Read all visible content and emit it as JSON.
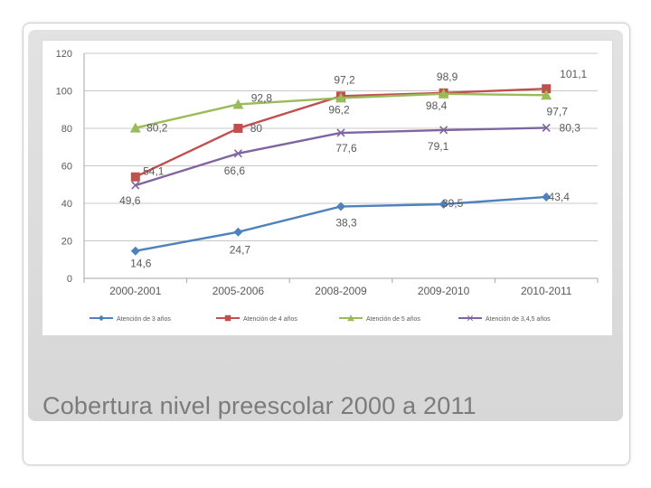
{
  "slide": {
    "title": "Cobertura nivel preescolar 2000 a 2011"
  },
  "colors": {
    "panel": "#d9d9d9",
    "grid": "#c8c8c8",
    "axis_text": "#595959",
    "title": "#7b7b7b"
  },
  "chart_data": {
    "type": "line",
    "categories": [
      "2000-2001",
      "2005-2006",
      "2008-2009",
      "2009-2010",
      "2010-2011"
    ],
    "ylim": [
      0,
      120
    ],
    "yticks": [
      0,
      20,
      40,
      60,
      80,
      100,
      120
    ],
    "grid": true,
    "legend": "bottom",
    "title": "",
    "xlabel": "",
    "ylabel": "",
    "series": [
      {
        "name": "Atención de 3 años",
        "color": "#4f81bd",
        "marker": "diamond",
        "values": [
          14.6,
          24.7,
          38.3,
          39.5,
          43.4
        ],
        "labels": [
          "14,6",
          "24,7",
          "38,3",
          "39,5",
          "43,4"
        ]
      },
      {
        "name": "Atención de 4 años",
        "color": "#c0504d",
        "marker": "square",
        "values": [
          54.1,
          80,
          97.2,
          98.9,
          101.1
        ],
        "labels": [
          "54,1",
          "80",
          "97,2",
          "98,9",
          "101,1"
        ]
      },
      {
        "name": "Atención de 5 años",
        "color": "#9bbb59",
        "marker": "triangle",
        "values": [
          80.2,
          92.8,
          96.2,
          98.4,
          97.7
        ],
        "labels": [
          "80,2",
          "92,8",
          "96,2",
          "98,4",
          "97,7"
        ]
      },
      {
        "name": "Atención de 3,4,5 años",
        "color": "#8064a2",
        "marker": "x",
        "values": [
          49.6,
          66.6,
          77.6,
          79.1,
          80.3
        ],
        "labels": [
          "49,6",
          "66,6",
          "77,6",
          "79,1",
          "80,3"
        ]
      }
    ]
  }
}
